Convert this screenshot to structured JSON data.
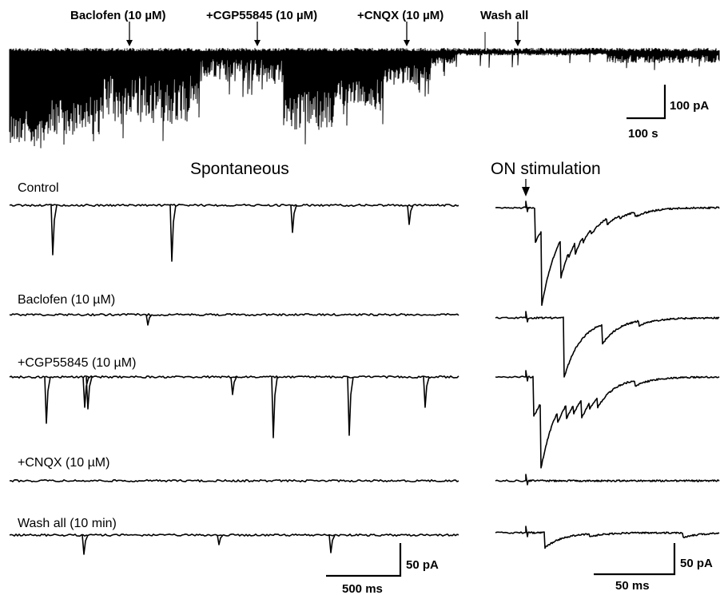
{
  "top_panel": {
    "drug_labels": [
      "Baclofen (10 µM)",
      "+CGP55845 (10 µM)",
      "+CNQX (10 µM)",
      "Wash all"
    ],
    "scale_bar": {
      "amplitude": "100 pA",
      "time": "100 s"
    }
  },
  "section_titles": {
    "spontaneous": "Spontaneous",
    "on_stimulation": "ON stimulation"
  },
  "conditions": [
    "Control",
    "Baclofen (10 µM)",
    "+CGP55845 (10 µM)",
    "+CNQX (10 µM)",
    "Wash all (10 min)"
  ],
  "spontaneous_scale_bar": {
    "amplitude": "50 pA",
    "time": "500 ms"
  },
  "evoked_scale_bar": {
    "amplitude": "50 pA",
    "time": "50 ms"
  }
}
